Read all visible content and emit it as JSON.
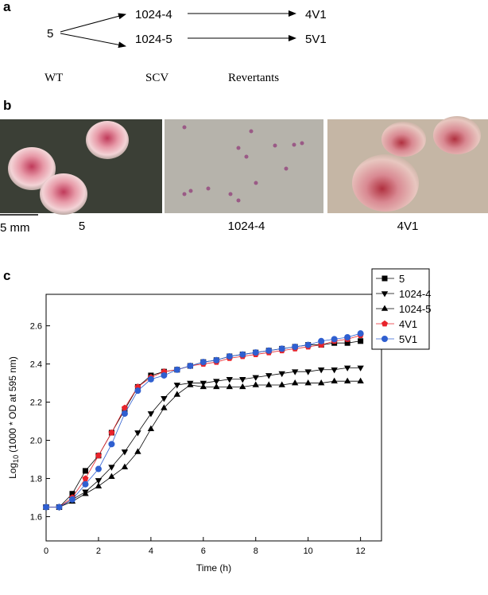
{
  "panel_a": {
    "label": "a",
    "wt": "5",
    "scv": [
      "1024-4",
      "1024-5"
    ],
    "revertants": [
      "4V1",
      "5V1"
    ],
    "columns": [
      "WT",
      "SCV",
      "Revertants"
    ]
  },
  "panel_b": {
    "label": "b",
    "scale": "5 mm",
    "captions": [
      "5",
      "1024-4",
      "4V1"
    ]
  },
  "panel_c": {
    "label": "c"
  },
  "chart_data": {
    "type": "line",
    "xlabel": "Time (h)",
    "ylabel": {
      "prefix": "Log",
      "sub": "10",
      "rest": "(1000 * OD at 595 nm)"
    },
    "x": [
      0,
      0.5,
      1,
      1.5,
      2,
      2.5,
      3,
      3.5,
      4,
      4.5,
      5,
      5.5,
      6,
      6.5,
      7,
      7.5,
      8,
      8.5,
      9,
      9.5,
      10,
      10.5,
      11,
      11.5,
      12
    ],
    "xlim": [
      0,
      12.8
    ],
    "xticks": [
      0,
      2,
      4,
      6,
      8,
      10,
      12
    ],
    "ylim": [
      1.473,
      2.765
    ],
    "yticks": [
      1.6,
      1.8,
      {
        "value": 2,
        "label": "2.0"
      },
      2.2,
      2.4,
      2.6
    ],
    "legend": "upper right",
    "series": [
      {
        "name": "5",
        "color": "#000000",
        "marker": "square",
        "values": [
          1.65,
          1.65,
          1.72,
          1.84,
          1.92,
          2.04,
          2.16,
          2.28,
          2.34,
          2.36,
          2.37,
          2.39,
          2.41,
          2.42,
          2.44,
          2.45,
          2.46,
          2.47,
          2.48,
          2.49,
          2.5,
          2.5,
          2.51,
          2.51,
          2.52
        ]
      },
      {
        "name": "1024-4",
        "color": "#000000",
        "marker": "triangle-down",
        "values": [
          1.65,
          1.65,
          1.69,
          1.73,
          1.79,
          1.86,
          1.94,
          2.04,
          2.14,
          2.22,
          2.29,
          2.3,
          2.3,
          2.31,
          2.32,
          2.32,
          2.33,
          2.34,
          2.35,
          2.36,
          2.36,
          2.37,
          2.37,
          2.38,
          2.38
        ]
      },
      {
        "name": "1024-5",
        "color": "#000000",
        "marker": "triangle-up",
        "values": [
          1.65,
          1.65,
          1.68,
          1.72,
          1.76,
          1.81,
          1.86,
          1.94,
          2.06,
          2.17,
          2.24,
          2.29,
          2.28,
          2.28,
          2.28,
          2.28,
          2.29,
          2.29,
          2.29,
          2.3,
          2.3,
          2.3,
          2.31,
          2.31,
          2.31
        ]
      },
      {
        "name": "4V1",
        "color": "#e8242c",
        "marker": "pentagon",
        "values": [
          1.65,
          1.65,
          1.7,
          1.8,
          1.92,
          2.04,
          2.17,
          2.28,
          2.33,
          2.36,
          2.37,
          2.39,
          2.4,
          2.41,
          2.43,
          2.44,
          2.45,
          2.46,
          2.47,
          2.48,
          2.49,
          2.5,
          2.52,
          2.53,
          2.55
        ]
      },
      {
        "name": "5V1",
        "color": "#2f5fd0",
        "marker": "circle",
        "values": [
          1.65,
          1.65,
          1.69,
          1.77,
          1.85,
          1.98,
          2.14,
          2.26,
          2.32,
          2.34,
          2.37,
          2.39,
          2.41,
          2.42,
          2.44,
          2.45,
          2.46,
          2.47,
          2.48,
          2.49,
          2.5,
          2.52,
          2.53,
          2.54,
          2.56
        ]
      }
    ]
  }
}
